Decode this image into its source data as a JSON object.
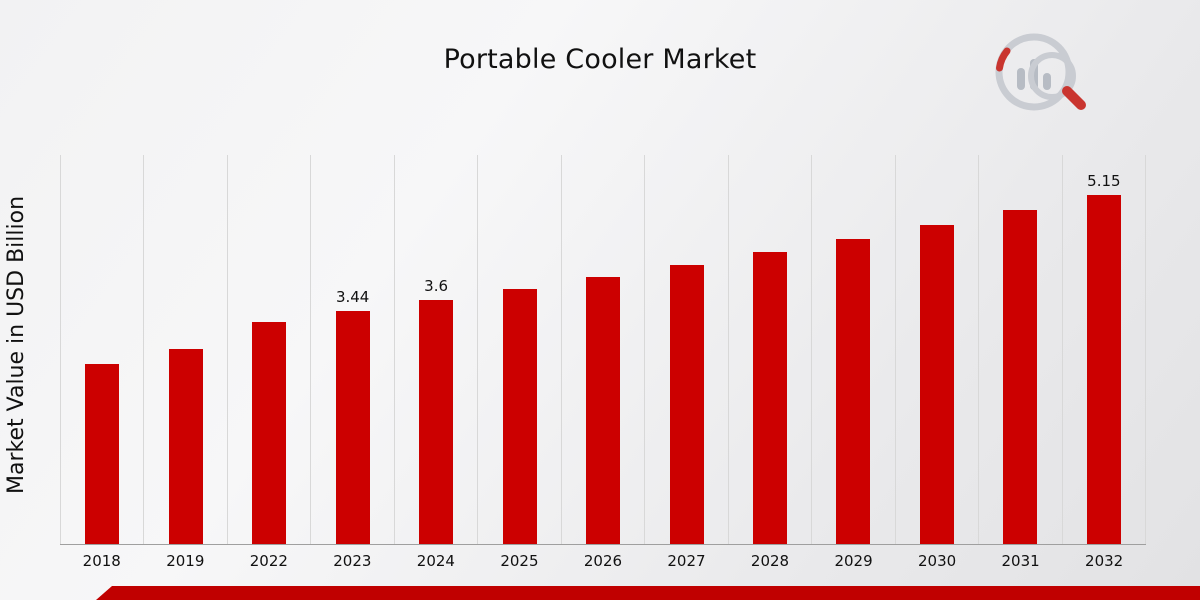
{
  "title": "Portable Cooler Market",
  "y_axis_title": "Market Value in USD Billion",
  "footer": {
    "accent_color": "#C00000"
  },
  "logo": {
    "name": "market-research-logo"
  },
  "chart_data": {
    "type": "bar",
    "title": "Portable Cooler Market",
    "xlabel": "",
    "ylabel": "Market Value in USD Billion",
    "categories": [
      "2018",
      "2019",
      "2022",
      "2023",
      "2024",
      "2025",
      "2026",
      "2027",
      "2028",
      "2029",
      "2030",
      "2031",
      "2032"
    ],
    "values": [
      2.66,
      2.87,
      3.28,
      3.44,
      3.6,
      3.76,
      3.93,
      4.11,
      4.3,
      4.5,
      4.7,
      4.92,
      5.15
    ],
    "data_labels": {
      "2023": "3.44",
      "2024": "3.6",
      "2032": "5.15"
    },
    "ylim": [
      0,
      5.75
    ],
    "grid": "vertical-separators-only",
    "legend": "none",
    "bar_color": "#CC0000"
  }
}
